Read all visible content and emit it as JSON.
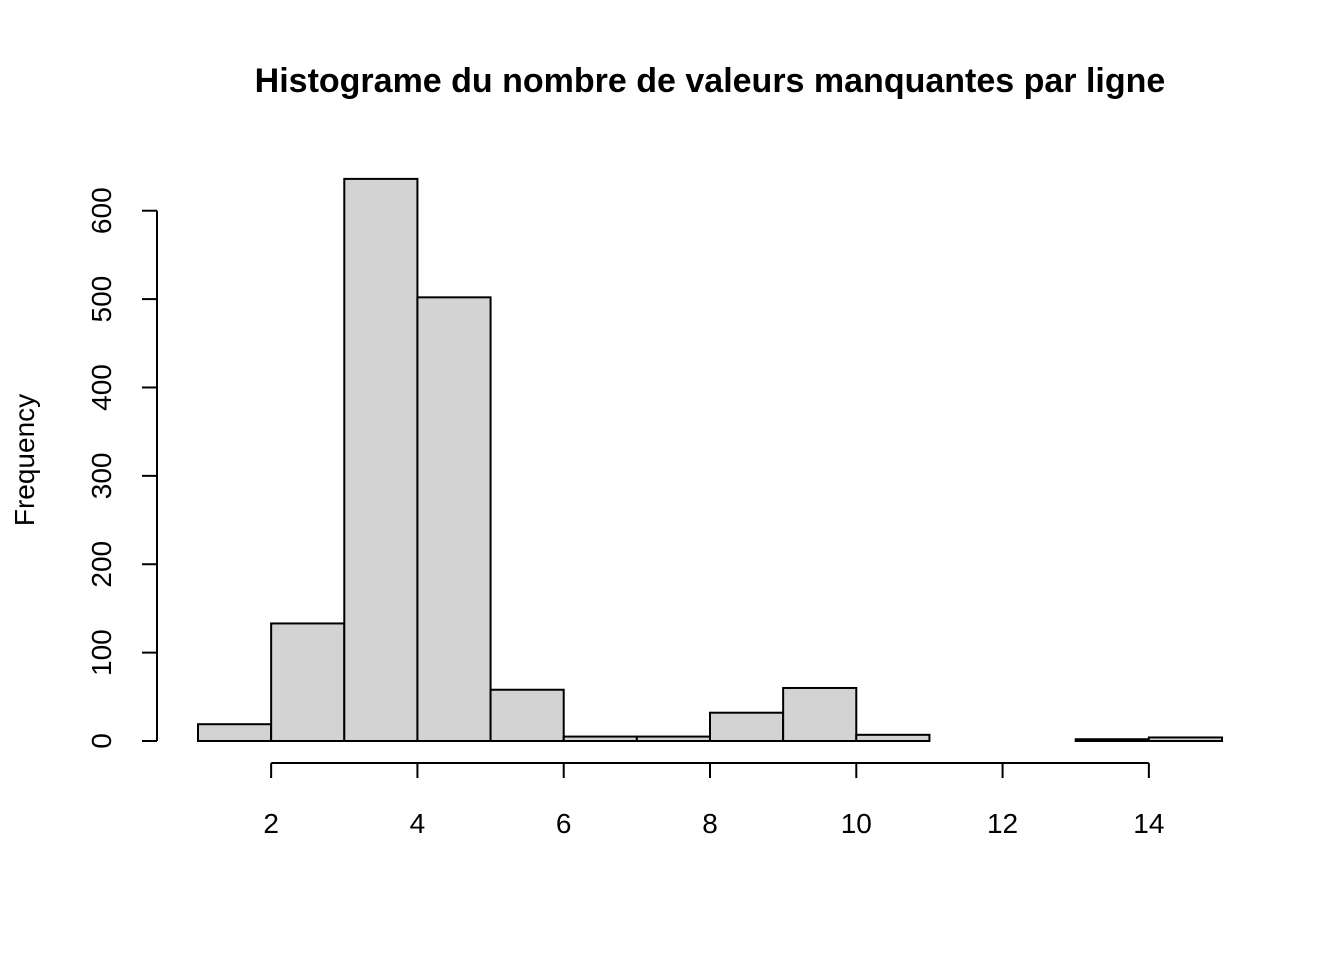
{
  "chart_data": {
    "type": "bar",
    "title": "Histograme du nombre de valeurs manquantes par ligne",
    "xlabel": "",
    "ylabel": "Frequency",
    "bins": [
      {
        "start": 1,
        "end": 2,
        "count": 19
      },
      {
        "start": 2,
        "end": 3,
        "count": 133
      },
      {
        "start": 3,
        "end": 4,
        "count": 636
      },
      {
        "start": 4,
        "end": 5,
        "count": 502
      },
      {
        "start": 5,
        "end": 6,
        "count": 58
      },
      {
        "start": 6,
        "end": 7,
        "count": 5
      },
      {
        "start": 7,
        "end": 8,
        "count": 5
      },
      {
        "start": 8,
        "end": 9,
        "count": 32
      },
      {
        "start": 9,
        "end": 10,
        "count": 60
      },
      {
        "start": 10,
        "end": 11,
        "count": 7
      },
      {
        "start": 11,
        "end": 12,
        "count": 0
      },
      {
        "start": 12,
        "end": 13,
        "count": 0
      },
      {
        "start": 13,
        "end": 14,
        "count": 2
      },
      {
        "start": 14,
        "end": 15,
        "count": 4
      }
    ],
    "xlim": [
      1,
      15
    ],
    "ylim": [
      0,
      650
    ],
    "x_ticks": [
      2,
      4,
      6,
      8,
      10,
      12,
      14
    ],
    "y_ticks": [
      0,
      100,
      200,
      300,
      400,
      500,
      600
    ],
    "grid": false,
    "bar_fill": "#d3d3d3",
    "bar_stroke": "#000000"
  }
}
